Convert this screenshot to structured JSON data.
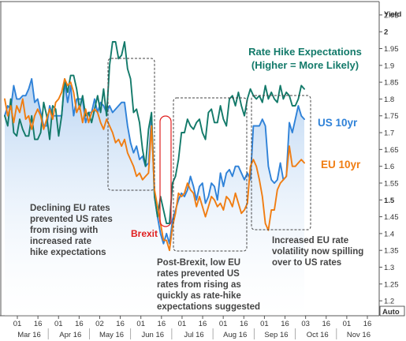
{
  "chart_data": {
    "type": "line",
    "y_axis": {
      "title": "Yield",
      "ticks": [
        "2.05",
        "2",
        "1.95",
        "1.9",
        "1.85",
        "1.8",
        "1.75",
        "1.7",
        "1.65",
        "1.6",
        "1.55",
        "1.5",
        "1.45",
        "1.4",
        "1.35",
        "1.3",
        "1.25",
        "1.2"
      ],
      "bold_ticks": [
        "2",
        "1.5"
      ],
      "corner_label": "Auto",
      "range": [
        1.165,
        2.085
      ],
      "side": "right"
    },
    "x_axis": {
      "day_ticks": [
        "01",
        "16",
        "01",
        "16",
        "02",
        "16",
        "01",
        "16",
        "01",
        "16",
        "01",
        "16",
        "01",
        "16",
        "03",
        "16",
        "01",
        "16"
      ],
      "month_labels": [
        "Mar 16",
        "Apr 16",
        "May 16",
        "Jun 16",
        "Jul 16",
        "Aug 16",
        "Sep 16",
        "Oct 16",
        "Nov 16"
      ]
    },
    "legend_labels": {
      "rate_hike": [
        "Rate Hike Expectations",
        "(Higher = More Likely)"
      ],
      "us10yr": "US 10yr",
      "eu10yr": "EU 10yr"
    },
    "annotations": {
      "brexit": "Brexit",
      "box1": [
        "Declining EU rates",
        "prevented US rates",
        "from rising with",
        "increased rate",
        "hike expectations"
      ],
      "box2": [
        "Post-Brexit, low EU",
        "rates prevented US",
        "rates from rising as",
        "quickly as rate-hike",
        "expectations suggested"
      ],
      "box3": [
        "Increased EU rate",
        "volatility now spilling",
        "over to US rates"
      ]
    },
    "series": [
      {
        "key": "rate_hike",
        "color": "#137a6a",
        "values": [
          1.75,
          1.72,
          1.8,
          1.7,
          1.69,
          1.74,
          1.71,
          1.69,
          1.69,
          1.75,
          1.68,
          1.68,
          1.7,
          1.79,
          1.75,
          1.68,
          1.78,
          1.77,
          1.69,
          1.75,
          1.86,
          1.82,
          1.87,
          1.87,
          1.83,
          1.77,
          1.81,
          1.75,
          1.76,
          1.73,
          1.77,
          1.81,
          1.76,
          1.83,
          1.75,
          1.9,
          1.97,
          1.97,
          1.92,
          1.93,
          1.97,
          1.89,
          1.86,
          1.76,
          1.77,
          1.73,
          1.65,
          1.6,
          1.71,
          1.76,
          1.51,
          1.45,
          1.51,
          1.47,
          1.43,
          1.43,
          1.55,
          1.57,
          1.62,
          1.7,
          1.7,
          1.74,
          1.72,
          1.71,
          1.73,
          1.74,
          1.7,
          1.68,
          1.76,
          1.77,
          1.73,
          1.73,
          1.78,
          1.74,
          1.72,
          1.8,
          1.81,
          1.78,
          1.82,
          1.78,
          1.75,
          1.8,
          1.83,
          1.81,
          1.8,
          1.81,
          1.79,
          1.84,
          1.8,
          1.82,
          1.8,
          1.79,
          1.84,
          1.8,
          1.82,
          1.81,
          1.78,
          1.78,
          1.8,
          1.84,
          1.83
        ]
      },
      {
        "key": "us10yr",
        "color": "#2f82d8",
        "values": [
          1.75,
          1.78,
          1.77,
          1.84,
          1.8,
          1.8,
          1.81,
          1.81,
          1.83,
          1.86,
          1.79,
          1.8,
          1.76,
          1.72,
          1.72,
          1.78,
          1.75,
          1.75,
          1.75,
          1.75,
          1.85,
          1.79,
          1.84,
          1.75,
          1.8,
          1.8,
          1.8,
          1.73,
          1.76,
          1.76,
          1.8,
          1.76,
          1.79,
          1.78,
          1.76,
          1.78,
          1.76,
          1.77,
          1.78,
          1.79,
          1.79,
          1.72,
          1.67,
          1.64,
          1.66,
          1.62,
          1.63,
          1.6,
          1.61,
          1.75,
          1.51,
          1.45,
          1.4,
          1.37,
          1.4,
          1.37,
          1.44,
          1.47,
          1.5,
          1.52,
          1.51,
          1.53,
          1.57,
          1.54,
          1.5,
          1.54,
          1.55,
          1.49,
          1.51,
          1.55,
          1.54,
          1.5,
          1.58,
          1.54,
          1.58,
          1.59,
          1.57,
          1.6,
          1.6,
          1.58,
          1.56,
          1.58,
          1.56,
          1.72,
          1.72,
          1.72,
          1.74,
          1.72,
          1.6,
          1.56,
          1.55,
          1.56,
          1.61,
          1.56,
          1.57,
          1.73,
          1.7,
          1.74,
          1.78,
          1.75,
          1.74
        ]
      },
      {
        "key": "eu10yr",
        "color": "#f07d12",
        "values": [
          1.8,
          1.75,
          1.78,
          1.73,
          1.78,
          1.76,
          1.8,
          1.74,
          1.75,
          1.71,
          1.75,
          1.77,
          1.75,
          1.71,
          1.74,
          1.77,
          1.74,
          1.79,
          1.8,
          1.82,
          1.86,
          1.84,
          1.85,
          1.82,
          1.76,
          1.78,
          1.73,
          1.77,
          1.73,
          1.76,
          1.77,
          1.76,
          1.73,
          1.71,
          1.74,
          1.72,
          1.7,
          1.67,
          1.68,
          1.66,
          1.68,
          1.64,
          1.62,
          1.6,
          1.57,
          1.58,
          1.56,
          1.57,
          1.58,
          1.72,
          1.53,
          1.48,
          1.43,
          1.38,
          1.38,
          1.35,
          1.42,
          1.46,
          1.52,
          1.51,
          1.52,
          1.55,
          1.53,
          1.52,
          1.48,
          1.51,
          1.48,
          1.45,
          1.48,
          1.51,
          1.5,
          1.48,
          1.49,
          1.47,
          1.51,
          1.5,
          1.48,
          1.52,
          1.49,
          1.46,
          1.47,
          1.49,
          1.6,
          1.62,
          1.6,
          1.56,
          1.51,
          1.43,
          1.41,
          1.47,
          1.47,
          1.53,
          1.55,
          1.56,
          1.57,
          1.66,
          1.6,
          1.6,
          1.61,
          1.62,
          1.61
        ]
      }
    ],
    "grid": false,
    "area_fill": "us10yr"
  }
}
